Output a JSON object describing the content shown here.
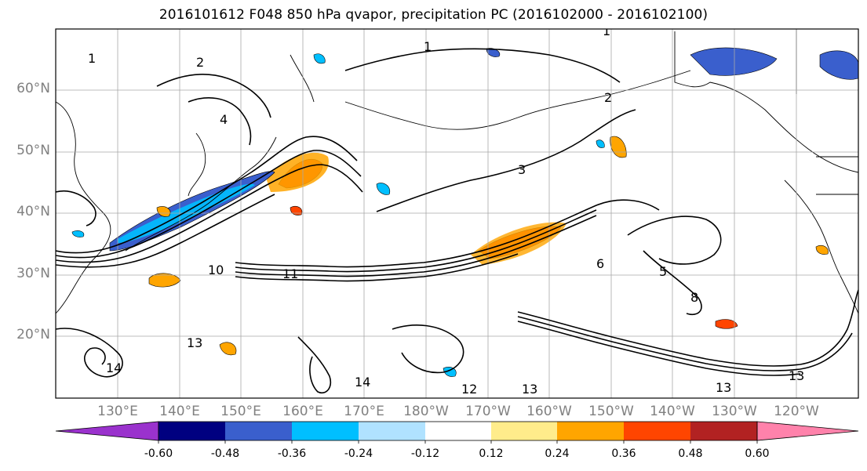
{
  "title": "2016101612 F048 850 hPa qvapor, precipitation PC (2016102000 - 2016102100)",
  "latitude_labels": [
    "60°N",
    "50°N",
    "40°N",
    "30°N",
    "20°N"
  ],
  "longitude_labels": [
    "130°E",
    "140°E",
    "150°E",
    "160°E",
    "170°E",
    "180°W",
    "170°W",
    "160°W",
    "150°W",
    "140°W",
    "130°W",
    "120°W"
  ],
  "contour_labels": [
    "1",
    "1",
    "1",
    "2",
    "2",
    "3",
    "4",
    "5",
    "6",
    "8",
    "10",
    "11",
    "12",
    "13",
    "13",
    "13",
    "13",
    "14",
    "14"
  ],
  "colorbar": {
    "tick_labels": [
      "-0.60",
      "-0.48",
      "-0.36",
      "-0.24",
      "-0.12",
      "0.12",
      "0.24",
      "0.36",
      "0.48",
      "0.60"
    ],
    "colors": [
      "#9a32cd",
      "#000080",
      "#3a5fcd",
      "#00bfff",
      "#b0e2ff",
      "#ffffff",
      "#ffec8b",
      "#ffa500",
      "#ff4500",
      "#b22222",
      "#ff82ab"
    ]
  }
}
